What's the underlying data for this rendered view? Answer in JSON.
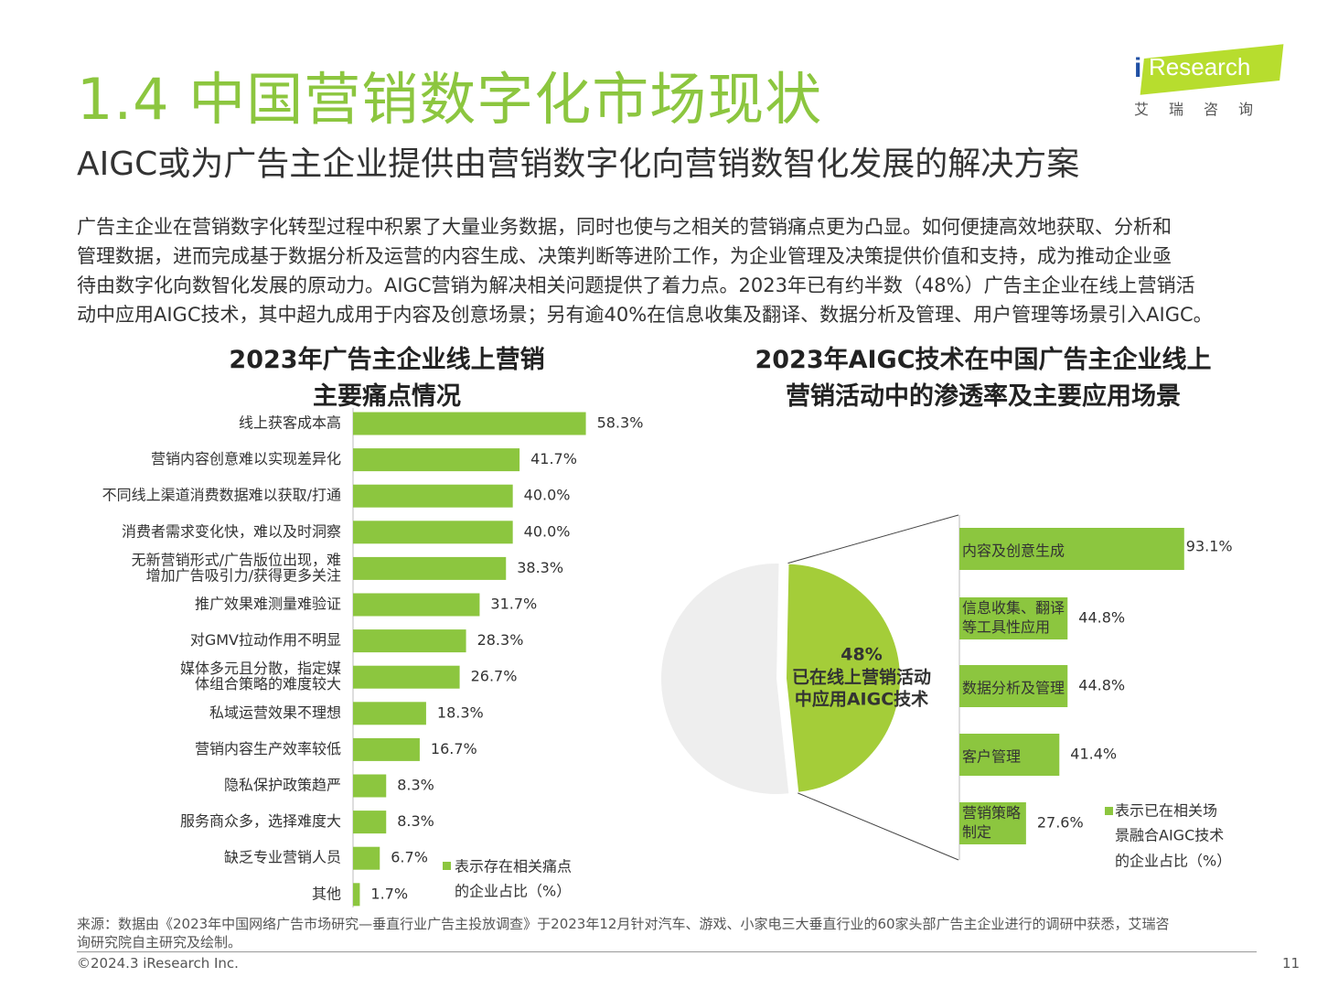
{
  "header": {
    "title": "1.4 中国营销数字化市场现状",
    "subtitle": "AIGC或为广告主企业提供由营销数字化向营销数智化发展的解决方案"
  },
  "logo": {
    "i": "i",
    "name": "Research",
    "sub": "艾瑞咨询"
  },
  "paragraph": [
    "广告主企业在营销数字化转型过程中积累了大量业务数据，同时也使与之相关的营销痛点更为凸显。如何便捷高效地获取、分析和",
    "管理数据，进而完成基于数据分析及运营的内容生成、决策判断等进阶工作，为企业管理及决策提供价值和支持，成为推动企业亟",
    "待由数字化向数智化发展的原动力。AIGC营销为解决相关问题提供了着力点。2023年已有约半数（48%）广告主企业在线上营销活",
    "动中应用AIGC技术，其中超九成用于内容及创意场景；另有逾40%在信息收集及翻译、数据分析及管理、用户管理等场景引入AIGC。"
  ],
  "colors": {
    "accent": "#8cc63f",
    "bar": "#8cc63f",
    "pie_main": "#a4cd39",
    "pie_rest": "#eeeeee",
    "text": "#333333"
  },
  "chart_data": [
    {
      "type": "bar",
      "orientation": "horizontal",
      "title_lines": [
        "2023年广告主企业线上营销",
        "主要痛点情况"
      ],
      "categories": [
        [
          "线上获客成本高"
        ],
        [
          "营销内容创意难以实现差异化"
        ],
        [
          "不同线上渠道消费数据难以获取/打通"
        ],
        [
          "消费者需求变化快，难以及时洞察"
        ],
        [
          "无新营销形式/广告版位出现，难",
          "增加广告吸引力/获得更多关注"
        ],
        [
          "推广效果难测量难验证"
        ],
        [
          "对GMV拉动作用不明显"
        ],
        [
          "媒体多元且分散，指定媒",
          "体组合策略的难度较大"
        ],
        [
          "私域运营效果不理想"
        ],
        [
          "营销内容生产效率较低"
        ],
        [
          "隐私保护政策趋严"
        ],
        [
          "服务商众多，选择难度大"
        ],
        [
          "缺乏专业营销人员"
        ],
        [
          "其他"
        ]
      ],
      "values": [
        58.3,
        41.7,
        40.0,
        40.0,
        38.3,
        31.7,
        28.3,
        26.7,
        18.3,
        16.7,
        8.3,
        8.3,
        6.7,
        1.7
      ],
      "value_labels": [
        "58.3%",
        "41.7%",
        "40.0%",
        "40.0%",
        "38.3%",
        "31.7%",
        "28.3%",
        "26.7%",
        "18.3%",
        "16.7%",
        "8.3%",
        "8.3%",
        "6.7%",
        "1.7%"
      ],
      "legend": [
        "表示存在相关痛点",
        "的企业占比（%）"
      ],
      "xlim": [
        0,
        60
      ]
    },
    {
      "type": "pie",
      "title_lines": [
        "2023年AIGC技术在中国广告主企业线上",
        "营销活动中的渗透率及主要应用场景"
      ],
      "values": [
        48,
        52
      ],
      "center_label": [
        "48%",
        "已在线上营销活动",
        "中应用AIGC技术"
      ]
    },
    {
      "type": "bar",
      "orientation": "horizontal",
      "categories": [
        [
          "内容及创意生成"
        ],
        [
          "信息收集、翻译",
          "等工具性应用"
        ],
        [
          "数据分析及管理"
        ],
        [
          "客户管理"
        ],
        [
          "营销策略",
          "制定"
        ]
      ],
      "values": [
        93.1,
        44.8,
        44.8,
        41.4,
        27.6
      ],
      "value_labels": [
        "93.1%",
        "44.8%",
        "44.8%",
        "41.4%",
        "27.6%"
      ],
      "legend": [
        "表示已在相关场",
        "景融合AIGC技术",
        "的企业占比（%）"
      ],
      "xlim": [
        0,
        100
      ]
    }
  ],
  "footer": {
    "source": [
      "来源：数据由《2023年中国网络广告市场研究—垂直行业广告主投放调查》于2023年12月针对汽车、游戏、小家电三大垂直行业的60家头部广告主企业进行的调研中获悉，艾瑞咨",
      "询研究院自主研究及绘制。"
    ],
    "copyright": "©2024.3 iResearch Inc.",
    "page": "11"
  }
}
